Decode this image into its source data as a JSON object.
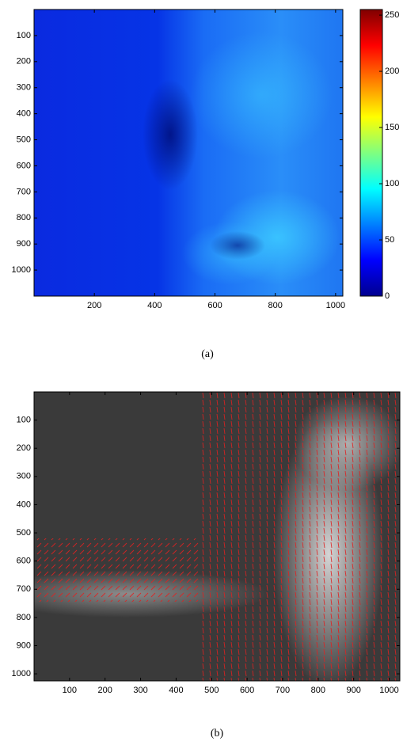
{
  "chart_data": [
    {
      "type": "heatmap",
      "caption": "(a)",
      "xlim": [
        0,
        1024
      ],
      "ylim": [
        0,
        1100
      ],
      "xticks": [
        200,
        400,
        600,
        800,
        1000
      ],
      "yticks": [
        100,
        200,
        300,
        400,
        500,
        600,
        700,
        800,
        900,
        1000
      ],
      "colorbar_lim": [
        0,
        255
      ],
      "colorbar_ticks": [
        0,
        50,
        100,
        150,
        200,
        250
      ]
    },
    {
      "type": "image",
      "caption": "(b)",
      "xlim": [
        0,
        1030
      ],
      "ylim": [
        0,
        1025
      ],
      "xticks": [
        100,
        200,
        300,
        400,
        500,
        600,
        700,
        800,
        900,
        1000
      ],
      "yticks": [
        100,
        200,
        300,
        400,
        500,
        600,
        700,
        800,
        900,
        1000
      ]
    }
  ]
}
